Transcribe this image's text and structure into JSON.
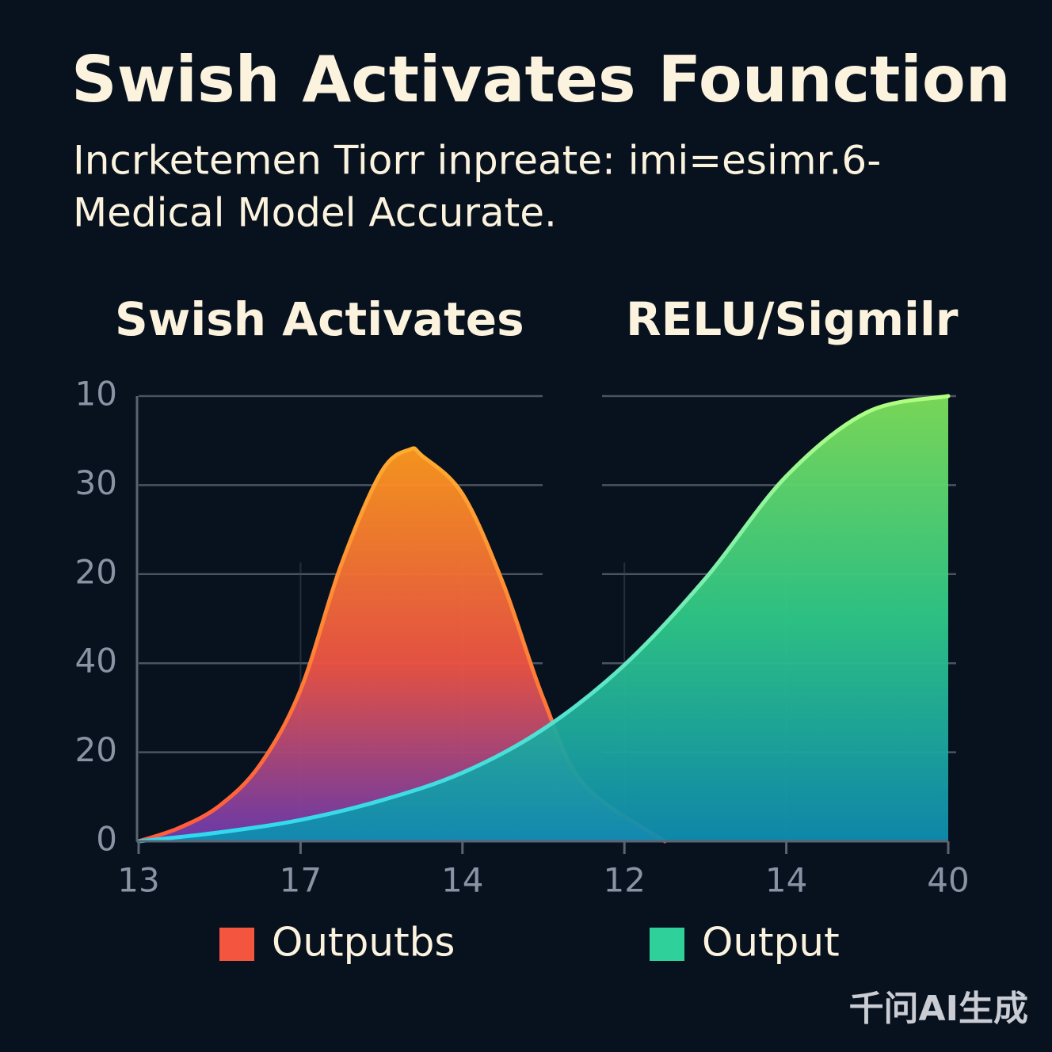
{
  "chart_data": {
    "type": "area",
    "title": "Swish Activates Founction",
    "subtitle": [
      "Incrketemen Tiorr inpreate: imi=esimr.6-",
      "Medical Model Accurate."
    ],
    "panel_titles": [
      "Swish Activates",
      "RELU/Sigmilr"
    ],
    "watermark": "千问AI生成",
    "xlim": [
      0,
      10
    ],
    "xticks": [
      {
        "value": 0,
        "label": "13"
      },
      {
        "value": 2,
        "label": "17"
      },
      {
        "value": 4,
        "label": "14"
      },
      {
        "value": 6,
        "label": "12"
      },
      {
        "value": 8,
        "label": "14"
      },
      {
        "value": 10,
        "label": "40"
      }
    ],
    "ylim": [
      0,
      50
    ],
    "yticks": [
      {
        "value": 50,
        "label": "10"
      },
      {
        "value": 40,
        "label": "30"
      },
      {
        "value": 30,
        "label": "20"
      },
      {
        "value": 20,
        "label": "40"
      },
      {
        "value": 10,
        "label": "20"
      },
      0
    ],
    "grid": true,
    "series": [
      {
        "name": "Outputbs",
        "color": "#f4553e",
        "x": [
          0,
          0.5,
          1,
          1.5,
          2,
          2.5,
          3,
          3.35,
          3.5,
          4,
          4.5,
          5,
          5.5,
          6.5
        ],
        "values": [
          0,
          1.5,
          4,
          8.6,
          17,
          31,
          41.5,
          44,
          43.3,
          39,
          29,
          16,
          6.4,
          0
        ]
      },
      {
        "name": "Output",
        "color": "#2fd09a",
        "x": [
          0,
          1,
          2,
          3,
          4,
          5,
          6,
          7,
          8,
          9,
          10
        ],
        "values": [
          0,
          1,
          2.4,
          4.6,
          7.7,
          12.6,
          19.8,
          29.5,
          41,
          48.2,
          50
        ]
      }
    ]
  }
}
